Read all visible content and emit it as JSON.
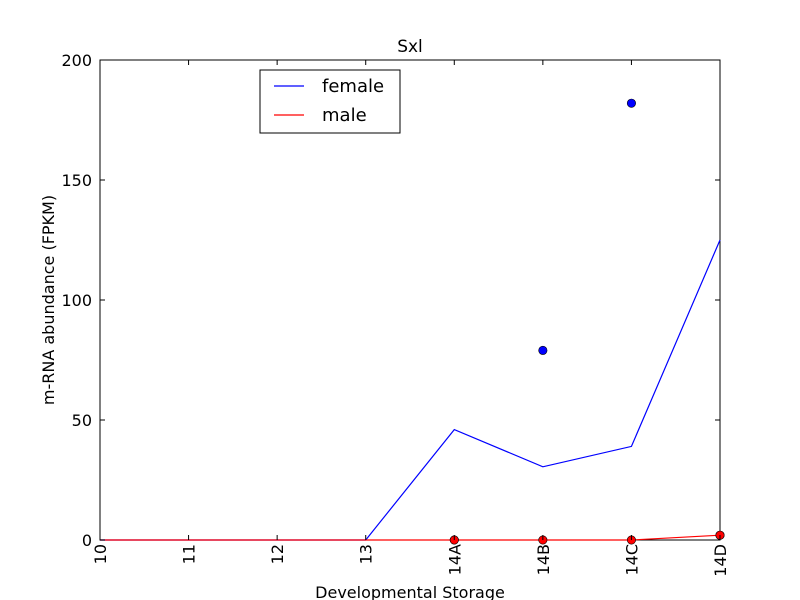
{
  "chart_data": {
    "type": "line",
    "title": "Sxl",
    "xlabel": "Developmental Storage",
    "ylabel": "m-RNA abundance (FPKM)",
    "categories": [
      "10",
      "11",
      "12",
      "13",
      "14A",
      "14B",
      "14C",
      "14D"
    ],
    "ylim": [
      0,
      200
    ],
    "yticks": [
      0,
      50,
      100,
      150,
      200
    ],
    "grid": false,
    "legend_position": "top-left",
    "series": [
      {
        "name": "female",
        "color": "#0000ff",
        "line": [
          0,
          0,
          0,
          0,
          46,
          30.5,
          39,
          125
        ],
        "points": [
          {
            "x": "14A",
            "y": 0
          },
          {
            "x": "14B",
            "y": 79
          },
          {
            "x": "14C",
            "y": 182
          },
          {
            "x": "14D",
            "y": 2
          }
        ]
      },
      {
        "name": "male",
        "color": "#ff0000",
        "line": [
          0,
          0,
          0,
          0,
          0,
          0,
          0,
          2
        ],
        "points": [
          {
            "x": "14A",
            "y": 0
          },
          {
            "x": "14B",
            "y": 0
          },
          {
            "x": "14C",
            "y": 0
          },
          {
            "x": "14D",
            "y": 2
          }
        ]
      }
    ]
  }
}
